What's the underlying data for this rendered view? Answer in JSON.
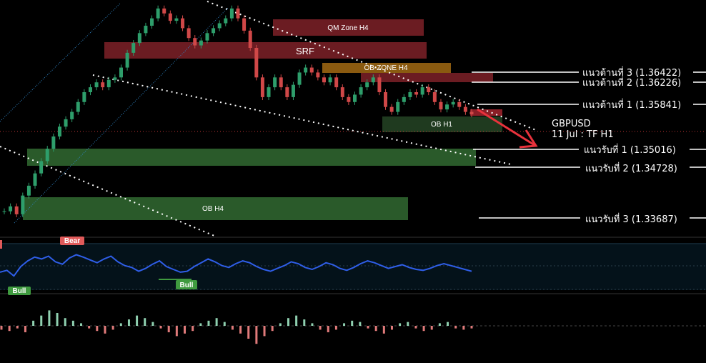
{
  "chart_data": [
    {
      "type": "candlestick",
      "symbol": "GBPUSD",
      "info": {
        "symbol": "GBPUSD",
        "date_timeframe": "11 Jul : TF H1"
      },
      "price_range": [
        1.334,
        1.379
      ],
      "zones": [
        {
          "id": "qm",
          "label": "QM Zone H4",
          "kind": "resistance",
          "color": "#6b1c22"
        },
        {
          "id": "srf",
          "label": "SRF",
          "kind": "resistance",
          "color": "#6b1c22"
        },
        {
          "id": "obzone",
          "label": "OB-ZONE H4",
          "kind": "resistance",
          "color": "#8a5a10"
        },
        {
          "id": "ob_h1_red",
          "label": "",
          "kind": "resistance",
          "color": "#6b1c22"
        },
        {
          "id": "obh1",
          "label": "OB H1",
          "kind": "support",
          "color": "#1f3a1f"
        },
        {
          "id": "sup1_zone",
          "label": "",
          "kind": "support",
          "color": "#2a5a2a"
        },
        {
          "id": "obh4",
          "label": "OB H4",
          "kind": "support",
          "color": "#2a5a2a"
        }
      ],
      "levels": [
        {
          "label": "แนวต้านที่ 3 (1.36422)",
          "price": 1.36422
        },
        {
          "label": "แนวต้านที่ 2 (1.36226)",
          "price": 1.36226
        },
        {
          "label": "แนวต้านที่ 1 (1.35841)",
          "price": 1.35841
        },
        {
          "label": "แนวรับที่ 1 (1.35016)",
          "price": 1.35016
        },
        {
          "label": "แนวรับที่ 2 (1.34728)",
          "price": 1.34728
        },
        {
          "label": "แนวรับที่ 3 (1.33687)",
          "price": 1.33687
        }
      ],
      "candles": [
        1.3368,
        1.3378,
        1.3362,
        1.34,
        1.342,
        1.3445,
        1.347,
        1.3495,
        1.352,
        1.354,
        1.3555,
        1.357,
        1.359,
        1.361,
        1.362,
        1.363,
        1.362,
        1.3635,
        1.364,
        1.366,
        1.369,
        1.371,
        1.373,
        1.3745,
        1.376,
        1.378,
        1.377,
        1.3755,
        1.376,
        1.374,
        1.372,
        1.3705,
        1.3715,
        1.373,
        1.374,
        1.375,
        1.376,
        1.378,
        1.376,
        1.3735,
        1.37,
        1.364,
        1.36,
        1.362,
        1.364,
        1.362,
        1.36,
        1.3625,
        1.365,
        1.366,
        1.365,
        1.364,
        1.363,
        1.364,
        1.362,
        1.36,
        1.359,
        1.3605,
        1.362,
        1.363,
        1.364,
        1.361,
        1.358,
        1.357,
        1.359,
        1.36,
        1.361,
        1.3605,
        1.362,
        1.361,
        1.359,
        1.3575,
        1.3585,
        1.359,
        1.358,
        1.357,
        1.3565
      ]
    },
    {
      "type": "line",
      "name": "oscillator",
      "tags": [
        {
          "text": "Bear",
          "color": "#e05a5a"
        },
        {
          "text": "Bull",
          "color": "#3f9a3f"
        },
        {
          "text": "Bull",
          "color": "#3f9a3f"
        }
      ],
      "values": [
        38,
        42,
        30,
        50,
        62,
        70,
        66,
        72,
        60,
        55,
        68,
        75,
        70,
        64,
        58,
        66,
        72,
        60,
        52,
        48,
        40,
        46,
        55,
        62,
        50,
        44,
        38,
        40,
        50,
        58,
        66,
        60,
        52,
        48,
        56,
        62,
        58,
        50,
        44,
        40,
        46,
        52,
        60,
        56,
        48,
        44,
        50,
        58,
        54,
        46,
        42,
        48,
        56,
        62,
        58,
        52,
        46,
        50,
        54,
        48,
        44,
        42,
        46,
        52,
        56,
        52,
        48,
        44,
        40
      ]
    },
    {
      "type": "bar",
      "name": "histogram",
      "values": [
        -3,
        -4,
        -2,
        -5,
        4,
        8,
        12,
        10,
        6,
        4,
        2,
        -2,
        -4,
        -6,
        -3,
        2,
        5,
        8,
        6,
        3,
        -2,
        -5,
        -8,
        -6,
        -4,
        2,
        4,
        6,
        3,
        -3,
        -6,
        -10,
        -14,
        -8,
        -4,
        2,
        6,
        8,
        5,
        2,
        -3,
        -5,
        -3,
        2,
        4,
        3,
        -2,
        -4,
        -6,
        -3,
        2,
        3,
        -2,
        -4,
        -3,
        2,
        3,
        -2,
        -3,
        -2
      ]
    }
  ]
}
